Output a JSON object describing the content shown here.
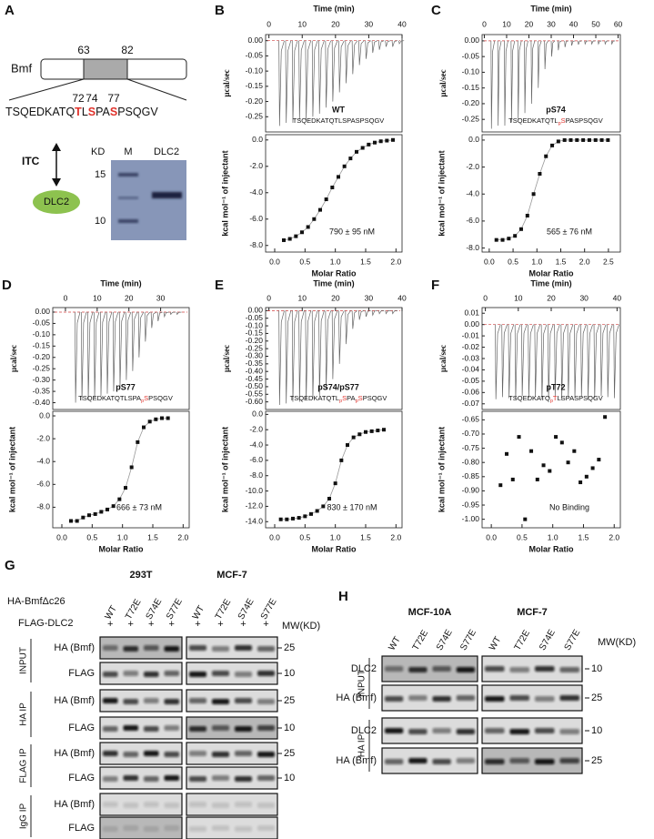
{
  "panel_a": {
    "letter": "A",
    "protein": "Bmf",
    "start": 63,
    "end": 82,
    "residues": [
      72,
      74,
      77
    ],
    "sequence": [
      {
        "text": "TSQEDKATQ"
      },
      {
        "text": "T",
        "style": "red"
      },
      {
        "text": "L"
      },
      {
        "text": "S",
        "style": "red"
      },
      {
        "text": "PA"
      },
      {
        "text": "S",
        "style": "red"
      },
      {
        "text": "PSQGV"
      }
    ],
    "method": "ITC",
    "partner": "DLC2",
    "gel": {
      "unit": "KD",
      "lanes": [
        "M",
        "DLC2"
      ],
      "markers": [
        15,
        10
      ]
    }
  },
  "itc_labels": {
    "time": "Time (min)",
    "power": "µcal/sec",
    "heat": "kcal mol⁻¹ of injectant",
    "ratio": "Molar Ratio"
  },
  "itc": [
    {
      "letter": "B",
      "name": "WT",
      "sequence": [
        {
          "text": "TSQEDKATQTLSPASPSQGV"
        }
      ],
      "kd": "790 ± 95 nM",
      "fit": true,
      "thermogram": {
        "xlim": [
          -1,
          40
        ],
        "xticks": [
          0,
          10,
          20,
          30,
          40
        ],
        "ylim": [
          -0.3,
          0.02
        ],
        "yticks": [
          {
            "value": 0,
            "label": "0.00"
          },
          -0.05,
          {
            "value": -0.1,
            "label": "-0.10"
          },
          -0.15,
          {
            "value": -0.2,
            "label": "-0.20"
          },
          -0.25
        ],
        "x": [
          3,
          5,
          7,
          9,
          11,
          13,
          15,
          17,
          19,
          21,
          23,
          25,
          27,
          29,
          31,
          33,
          35,
          37,
          39
        ],
        "values": [
          -0.28,
          -0.27,
          -0.27,
          -0.26,
          -0.26,
          -0.25,
          -0.24,
          -0.22,
          -0.2,
          -0.17,
          -0.14,
          -0.11,
          -0.08,
          -0.06,
          -0.04,
          -0.03,
          -0.02,
          -0.02,
          -0.01
        ]
      },
      "isotherm": {
        "xlim": [
          -0.15,
          2.1
        ],
        "xticks": [
          {
            "value": 0,
            "label": "0.0"
          },
          0.5,
          {
            "value": 1,
            "label": "1.0"
          },
          1.5,
          {
            "value": 2,
            "label": "2.0"
          }
        ],
        "ylim": [
          -8.5,
          0.4
        ],
        "yticks": [
          {
            "value": 0,
            "label": "0.0"
          },
          {
            "value": -2,
            "label": "-2.0"
          },
          {
            "value": -4,
            "label": "-4.0"
          },
          {
            "value": -6,
            "label": "-6.0"
          },
          {
            "value": -8,
            "label": "-8.0"
          }
        ],
        "x": [
          0.15,
          0.25,
          0.35,
          0.45,
          0.55,
          0.65,
          0.75,
          0.85,
          0.95,
          1.05,
          1.15,
          1.25,
          1.35,
          1.45,
          1.55,
          1.65,
          1.75,
          1.85,
          1.95
        ],
        "values": [
          -7.6,
          -7.5,
          -7.3,
          -7.0,
          -6.6,
          -6.0,
          -5.3,
          -4.5,
          -3.6,
          -2.8,
          -2.0,
          -1.4,
          -0.9,
          -0.6,
          -0.35,
          -0.2,
          -0.1,
          -0.05,
          0
        ]
      }
    },
    {
      "letter": "C",
      "name": "pS74",
      "sequence": [
        {
          "text": "TSQEDKATQTL"
        },
        {
          "text": "p",
          "style": "sub"
        },
        {
          "text": "S",
          "style": "red"
        },
        {
          "text": "PASPSQGV"
        }
      ],
      "kd": "565 ± 76 nM",
      "fit": true,
      "thermogram": {
        "xlim": [
          -1,
          61
        ],
        "xticks": [
          0,
          10,
          20,
          30,
          40,
          50,
          60
        ],
        "ylim": [
          -0.29,
          0.02
        ],
        "yticks": [
          {
            "value": 0,
            "label": "0.00"
          },
          -0.05,
          {
            "value": -0.1,
            "label": "-0.10"
          },
          -0.15,
          {
            "value": -0.2,
            "label": "-0.20"
          },
          -0.25
        ],
        "x": [
          3,
          6,
          9,
          12,
          15,
          18,
          21,
          24,
          27,
          30,
          33,
          36,
          39,
          42,
          45,
          48,
          51,
          54,
          57
        ],
        "values": [
          -0.28,
          -0.27,
          -0.27,
          -0.26,
          -0.25,
          -0.23,
          -0.2,
          -0.15,
          -0.09,
          -0.05,
          -0.03,
          -0.02,
          -0.015,
          -0.012,
          -0.01,
          -0.01,
          -0.01,
          -0.01,
          -0.01
        ]
      },
      "isotherm": {
        "xlim": [
          -0.15,
          2.75
        ],
        "xticks": [
          {
            "value": 0,
            "label": "0.0"
          },
          0.5,
          {
            "value": 1,
            "label": "1.0"
          },
          1.5,
          {
            "value": 2,
            "label": "2.0"
          },
          2.5
        ],
        "ylim": [
          -8.3,
          0.4
        ],
        "yticks": [
          {
            "value": 0,
            "label": "0.0"
          },
          {
            "value": -2,
            "label": "-2.0"
          },
          {
            "value": -4,
            "label": "-4.0"
          },
          {
            "value": -6,
            "label": "-6.0"
          },
          {
            "value": -8,
            "label": "-8.0"
          }
        ],
        "x": [
          0.15,
          0.28,
          0.41,
          0.54,
          0.67,
          0.8,
          0.93,
          1.06,
          1.19,
          1.32,
          1.45,
          1.58,
          1.71,
          1.84,
          1.97,
          2.1,
          2.23,
          2.36,
          2.49
        ],
        "values": [
          -7.4,
          -7.4,
          -7.3,
          -7.1,
          -6.6,
          -5.6,
          -4.0,
          -2.5,
          -1.2,
          -0.4,
          -0.1,
          0,
          0,
          0,
          0,
          0,
          0,
          0,
          0
        ]
      }
    },
    {
      "letter": "D",
      "name": "pS77",
      "sequence": [
        {
          "text": "TSQEDKATQTLSPA"
        },
        {
          "text": "p",
          "style": "sub"
        },
        {
          "text": "S",
          "style": "red"
        },
        {
          "text": "PSQGV"
        }
      ],
      "kd": "666 ± 73 nM",
      "fit": true,
      "thermogram": {
        "xlim": [
          -4,
          39
        ],
        "xticks": [
          0,
          10,
          20,
          30
        ],
        "ylim": [
          -0.43,
          0.02
        ],
        "yticks": [
          {
            "value": 0,
            "label": "0.00"
          },
          -0.05,
          {
            "value": -0.1,
            "label": "-0.10"
          },
          -0.15,
          {
            "value": -0.2,
            "label": "-0.20"
          },
          -0.25,
          {
            "value": -0.3,
            "label": "-0.30"
          },
          -0.35,
          {
            "value": -0.4,
            "label": "-0.40"
          }
        ],
        "x": [
          3,
          5,
          7,
          9,
          11,
          13,
          15,
          17,
          19,
          21,
          23,
          25,
          27,
          29,
          31,
          33,
          35
        ],
        "values": [
          -0.4,
          -0.39,
          -0.39,
          -0.38,
          -0.37,
          -0.36,
          -0.35,
          -0.33,
          -0.3,
          -0.26,
          -0.2,
          -0.13,
          -0.07,
          -0.04,
          -0.02,
          -0.01,
          -0.01
        ]
      },
      "isotherm": {
        "xlim": [
          -0.15,
          2.1
        ],
        "xticks": [
          {
            "value": 0,
            "label": "0.0"
          },
          0.5,
          {
            "value": 1,
            "label": "1.0"
          },
          1.5,
          {
            "value": 2,
            "label": "2.0"
          }
        ],
        "ylim": [
          -9.8,
          0.4
        ],
        "yticks": [
          {
            "value": 0,
            "label": "0.0"
          },
          {
            "value": -2,
            "label": "-2.0"
          },
          {
            "value": -4,
            "label": "-4.0"
          },
          {
            "value": -6,
            "label": "-6.0"
          },
          {
            "value": -8,
            "label": "-8.0"
          }
        ],
        "x": [
          0.15,
          0.25,
          0.35,
          0.45,
          0.55,
          0.65,
          0.75,
          0.85,
          0.95,
          1.05,
          1.15,
          1.25,
          1.35,
          1.45,
          1.55,
          1.65,
          1.75
        ],
        "values": [
          -9.2,
          -9.2,
          -8.9,
          -8.7,
          -8.6,
          -8.4,
          -8.2,
          -7.9,
          -7.3,
          -6.3,
          -4.5,
          -2.3,
          -1.0,
          -0.5,
          -0.3,
          -0.2,
          -0.2
        ]
      }
    },
    {
      "letter": "E",
      "name": "pS74/pS77",
      "sequence": [
        {
          "text": "TSQEDKATQTL"
        },
        {
          "text": "p",
          "style": "sub"
        },
        {
          "text": "S",
          "style": "red"
        },
        {
          "text": "PA"
        },
        {
          "text": "p",
          "style": "sub"
        },
        {
          "text": "S",
          "style": "red"
        },
        {
          "text": "PSQGV"
        }
      ],
      "kd": "830 ± 170 nM",
      "fit": true,
      "thermogram": {
        "xlim": [
          -1,
          40
        ],
        "xticks": [
          0,
          10,
          20,
          30,
          40
        ],
        "ylim": [
          -0.65,
          0.02
        ],
        "yticks": [
          {
            "value": 0,
            "label": "0.00"
          },
          -0.05,
          {
            "value": -0.1,
            "label": "-0.10"
          },
          -0.15,
          {
            "value": -0.2,
            "label": "-0.20"
          },
          -0.25,
          {
            "value": -0.3,
            "label": "-0.30"
          },
          -0.35,
          {
            "value": -0.4,
            "label": "-0.40"
          },
          -0.45,
          {
            "value": -0.5,
            "label": "-0.50"
          },
          -0.55,
          {
            "value": -0.6,
            "label": "-0.60"
          }
        ],
        "x": [
          3,
          5,
          7,
          9,
          11,
          13,
          15,
          17,
          19,
          21,
          23,
          25,
          27,
          29,
          31,
          33,
          35,
          37
        ],
        "values": [
          -0.62,
          -0.61,
          -0.6,
          -0.6,
          -0.59,
          -0.58,
          -0.56,
          -0.52,
          -0.45,
          -0.35,
          -0.22,
          -0.12,
          -0.06,
          -0.04,
          -0.03,
          -0.02,
          -0.02,
          -0.02
        ]
      },
      "isotherm": {
        "xlim": [
          -0.15,
          2.1
        ],
        "xticks": [
          {
            "value": 0,
            "label": "0.0"
          },
          0.5,
          {
            "value": 1,
            "label": "1.0"
          },
          1.5,
          {
            "value": 2,
            "label": "2.0"
          }
        ],
        "ylim": [
          -14.8,
          0.4
        ],
        "yticks": [
          {
            "value": 0,
            "label": "0.0"
          },
          {
            "value": -2,
            "label": "-2.0"
          },
          {
            "value": -4,
            "label": "-4.0"
          },
          {
            "value": -6,
            "label": "-6.0"
          },
          {
            "value": -8,
            "label": "-8.0"
          },
          {
            "value": -10,
            "label": "-10.0"
          },
          {
            "value": -12,
            "label": "-12.0"
          },
          {
            "value": -14,
            "label": "-14.0"
          }
        ],
        "x": [
          0.1,
          0.2,
          0.3,
          0.4,
          0.5,
          0.6,
          0.7,
          0.8,
          0.9,
          1.0,
          1.1,
          1.2,
          1.3,
          1.4,
          1.5,
          1.6,
          1.7,
          1.8
        ],
        "values": [
          -13.7,
          -13.7,
          -13.6,
          -13.5,
          -13.3,
          -13.0,
          -12.6,
          -12.0,
          -11.0,
          -9.0,
          -6.0,
          -4.0,
          -3.0,
          -2.6,
          -2.3,
          -2.2,
          -2.1,
          -2.0
        ]
      }
    },
    {
      "letter": "F",
      "name": "pT72",
      "sequence": [
        {
          "text": "TSQEDKATQ"
        },
        {
          "text": "p",
          "style": "sub"
        },
        {
          "text": "T",
          "style": "red"
        },
        {
          "text": "LSPASPSQGV"
        }
      ],
      "kd": "No Binding",
      "fit": false,
      "thermogram": {
        "xlim": [
          -1,
          41
        ],
        "xticks": [
          0,
          10,
          20,
          30,
          40
        ],
        "ylim": [
          -0.075,
          0.015
        ],
        "yticks": [
          0.01,
          {
            "value": 0,
            "label": "0.00"
          },
          -0.01,
          -0.02,
          -0.03,
          -0.04,
          -0.05,
          -0.06,
          -0.07
        ],
        "x": [
          3,
          5,
          7,
          9,
          11,
          13,
          15,
          17,
          19,
          21,
          23,
          25,
          27,
          29,
          31,
          33,
          35,
          37,
          39
        ],
        "values": [
          -0.066,
          -0.064,
          -0.065,
          -0.066,
          -0.063,
          -0.065,
          -0.064,
          -0.066,
          -0.065,
          -0.063,
          -0.066,
          -0.064,
          -0.065,
          -0.064,
          -0.066,
          -0.065,
          -0.063,
          -0.064,
          -0.065
        ]
      },
      "isotherm": {
        "xlim": [
          -0.15,
          2.1
        ],
        "xticks": [
          {
            "value": 0,
            "label": "0.0"
          },
          0.5,
          {
            "value": 1,
            "label": "1.0"
          },
          1.5,
          {
            "value": 2,
            "label": "2.0"
          }
        ],
        "ylim": [
          -1.03,
          -0.62
        ],
        "yticks": [
          -0.65,
          {
            "value": -0.7,
            "label": "-0.70"
          },
          -0.75,
          {
            "value": -0.8,
            "label": "-0.80"
          },
          -0.85,
          {
            "value": -0.9,
            "label": "-0.90"
          },
          -0.95,
          {
            "value": -1,
            "label": "-1.00"
          }
        ],
        "x": [
          0.15,
          0.25,
          0.35,
          0.45,
          0.55,
          0.65,
          0.75,
          0.85,
          0.95,
          1.05,
          1.15,
          1.25,
          1.35,
          1.45,
          1.55,
          1.65,
          1.75,
          1.85
        ],
        "values": [
          -0.88,
          -0.77,
          -0.86,
          -0.71,
          -1.0,
          -0.76,
          -0.86,
          -0.81,
          -0.83,
          -0.71,
          -0.73,
          -0.8,
          -0.76,
          -0.87,
          -0.85,
          -0.82,
          -0.79,
          -0.64
        ]
      }
    }
  ],
  "panel_g": {
    "letter": "G",
    "cells": [
      "293T",
      "MCF-7"
    ],
    "constructs": [
      "HA-BmfΔc26",
      "FLAG-DLC2"
    ],
    "lanes": [
      "WT",
      "T72E",
      "S74E",
      "S77E"
    ],
    "plus": "+",
    "mw_title": "MW(KD)",
    "groups": [
      {
        "name": "INPUT",
        "rows": [
          {
            "label": "HA (Bmf)",
            "mw": 25
          },
          {
            "label": "FLAG",
            "mw": 10
          }
        ]
      },
      {
        "name": "HA IP",
        "rows": [
          {
            "label": "HA (Bmf)",
            "mw": 25
          },
          {
            "label": "FLAG",
            "mw": 10
          }
        ]
      },
      {
        "name": "FLAG IP",
        "rows": [
          {
            "label": "HA (Bmf)",
            "mw": 25
          },
          {
            "label": "FLAG",
            "mw": 10
          }
        ]
      },
      {
        "name": "IgG IP",
        "rows": [
          {
            "label": "HA (Bmf)"
          },
          {
            "label": "FLAG"
          }
        ]
      }
    ]
  },
  "panel_h": {
    "letter": "H",
    "cells": [
      "MCF-10A",
      "MCF-7"
    ],
    "lanes": [
      "WT",
      "T72E",
      "S74E",
      "S77E"
    ],
    "mw_title": "MW(KD)",
    "groups": [
      {
        "name": "INPUT",
        "rows": [
          {
            "label": "DLC2",
            "mw": 10
          },
          {
            "label": "HA (Bmf)",
            "mw": 25
          }
        ]
      },
      {
        "name": "HA IP",
        "rows": [
          {
            "label": "DLC2",
            "mw": 10
          },
          {
            "label": "HA (Bmf)",
            "mw": 25
          }
        ]
      }
    ]
  }
}
